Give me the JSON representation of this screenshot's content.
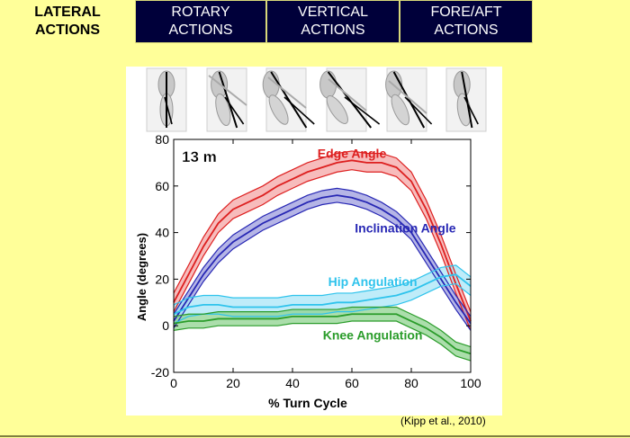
{
  "tabs": [
    {
      "label": "LATERAL\nACTIONS",
      "active": true
    },
    {
      "label": "ROTARY\nACTIONS",
      "active": false
    },
    {
      "label": "VERTICAL\nACTIONS",
      "active": false
    },
    {
      "label": "FORE/AFT\nACTIONS",
      "active": false
    }
  ],
  "citation": "(Kipp et al., 2010)",
  "chart_data": {
    "type": "line",
    "annotation": "13 m",
    "xlabel": "% Turn Cycle",
    "ylabel": "Angle (degrees)",
    "xlim": [
      0,
      100
    ],
    "ylim": [
      -20,
      80
    ],
    "xticks": [
      0,
      20,
      40,
      60,
      80,
      100
    ],
    "yticks": [
      -20,
      0,
      20,
      40,
      60,
      80
    ],
    "series": [
      {
        "name": "Edge Angle",
        "color": "#dd1f1f",
        "fill": "#f4a6a6",
        "x": [
          0,
          5,
          10,
          15,
          20,
          25,
          30,
          35,
          40,
          45,
          50,
          55,
          60,
          65,
          70,
          75,
          80,
          85,
          90,
          95,
          100
        ],
        "y": [
          10,
          22,
          34,
          44,
          50,
          53,
          56,
          60,
          63,
          66,
          68,
          70,
          71,
          70,
          70,
          68,
          62,
          50,
          35,
          18,
          2
        ],
        "band": 4
      },
      {
        "name": "Inclination Angle",
        "color": "#2727b4",
        "fill": "#9c9cdd",
        "x": [
          0,
          5,
          10,
          15,
          20,
          25,
          30,
          35,
          40,
          45,
          50,
          55,
          60,
          65,
          70,
          75,
          80,
          85,
          90,
          95,
          100
        ],
        "y": [
          2,
          12,
          22,
          30,
          36,
          40,
          44,
          47,
          50,
          53,
          55,
          56,
          55,
          53,
          50,
          46,
          40,
          30,
          20,
          10,
          1
        ],
        "band": 3
      },
      {
        "name": "Hip Angulation",
        "color": "#2ec3ec",
        "fill": "#a9e6f7",
        "x": [
          0,
          5,
          10,
          15,
          20,
          25,
          30,
          35,
          40,
          45,
          50,
          55,
          60,
          65,
          70,
          75,
          80,
          85,
          90,
          95,
          100
        ],
        "y": [
          5,
          8,
          9,
          9,
          8,
          8,
          8,
          8,
          9,
          9,
          9,
          10,
          10,
          11,
          12,
          13,
          15,
          18,
          21,
          22,
          17
        ],
        "band": 4
      },
      {
        "name": "Knee Angulation",
        "color": "#2a9c2a",
        "fill": "#8fd38f",
        "x": [
          0,
          5,
          10,
          15,
          20,
          25,
          30,
          35,
          40,
          45,
          50,
          55,
          60,
          65,
          70,
          75,
          80,
          85,
          90,
          95,
          100
        ],
        "y": [
          1,
          2,
          2,
          3,
          3,
          3,
          3,
          3,
          4,
          4,
          4,
          4,
          5,
          5,
          5,
          5,
          2,
          -1,
          -5,
          -10,
          -12
        ],
        "band": 3
      }
    ]
  }
}
